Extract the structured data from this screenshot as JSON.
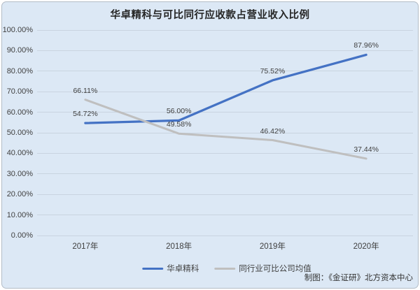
{
  "page": {
    "credit": "制图：《金证研》北方资本中心"
  },
  "chart_data": {
    "type": "line",
    "title": "华卓精科与可比同行应收款占营业收入比例",
    "xlabel": "",
    "ylabel": "",
    "categories": [
      "2017年",
      "2018年",
      "2019年",
      "2020年"
    ],
    "series": [
      {
        "name": "华卓精科",
        "color": "#4472c4",
        "values": [
          54.72,
          56.0,
          75.52,
          87.96
        ],
        "labels": [
          "54.72%",
          "56.00%",
          "75.52%",
          "87.96%"
        ]
      },
      {
        "name": "同行业可比公司均值",
        "color": "#bfbfbf",
        "values": [
          66.11,
          49.58,
          46.42,
          37.44
        ],
        "labels": [
          "66.11%",
          "49.58%",
          "46.42%",
          "37.44%"
        ]
      }
    ],
    "ylim": [
      0,
      100
    ],
    "y_tick_values": [
      100,
      90,
      80,
      70,
      60,
      50,
      40,
      30,
      20,
      10,
      0
    ],
    "y_tick_labels": [
      "100.00%",
      "90.00%",
      "80.00%",
      "70.00%",
      "60.00%",
      "50.00%",
      "40.00%",
      "30.00%",
      "20.00%",
      "10.00%",
      "0.00%"
    ],
    "grid": true,
    "legend_position": "bottom",
    "background_color": "#dce8f5"
  }
}
